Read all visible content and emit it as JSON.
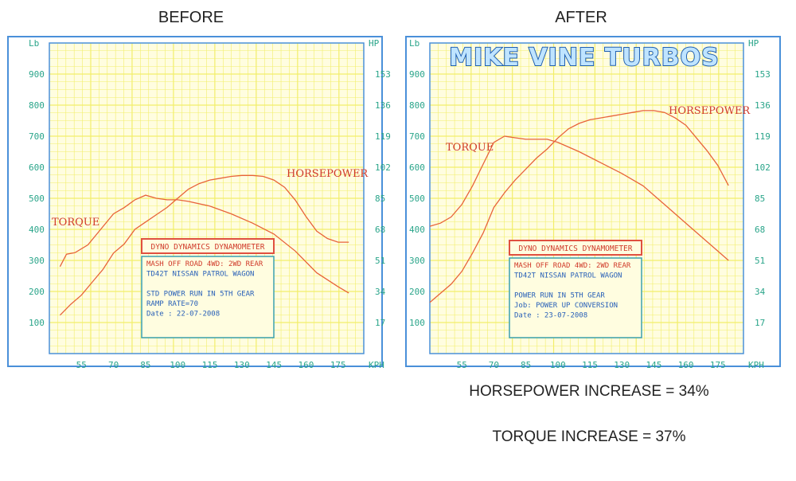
{
  "headings": {
    "before": "BEFORE",
    "after": "AFTER"
  },
  "results": {
    "hp": "HORSEPOWER INCREASE = 34%",
    "torque": "TORQUE INCREASE = 37%"
  },
  "brand": "MIKE VINE TURBOS",
  "colors": {
    "grid": "#f2ee6a",
    "frame": "#4a90d9",
    "curve": "#e8633a",
    "axis_text": "#2aa58a",
    "box_border": "#e05040",
    "box_text": "#2860b8",
    "box_red": "#d03a2a"
  },
  "chart_data": [
    {
      "type": "line",
      "x_ticks": [
        55,
        70,
        85,
        100,
        115,
        130,
        145,
        160,
        175
      ],
      "x_unit": "KPH",
      "xlim": [
        40,
        187
      ],
      "y_left_unit": "Lb",
      "y_left_ticks": [
        100,
        200,
        300,
        400,
        500,
        600,
        700,
        800,
        900
      ],
      "y_left_lim": [
        0,
        1000
      ],
      "y_right_unit": "HP",
      "y_right_ticks": [
        17,
        34,
        51,
        68,
        85,
        102,
        119,
        136,
        153
      ],
      "y_right_lim": [
        0,
        170
      ],
      "series": [
        {
          "name": "TORQUE",
          "axis": "left",
          "x": [
            45,
            48,
            52,
            58,
            64,
            70,
            75,
            80,
            85,
            90,
            95,
            100,
            105,
            115,
            125,
            135,
            145,
            155,
            165,
            175,
            180
          ],
          "y": [
            280,
            320,
            325,
            350,
            400,
            450,
            470,
            495,
            510,
            500,
            495,
            495,
            490,
            475,
            450,
            420,
            385,
            330,
            260,
            215,
            195
          ]
        },
        {
          "name": "HORSEPOWER",
          "axis": "right",
          "x": [
            45,
            50,
            55,
            60,
            65,
            70,
            75,
            80,
            85,
            90,
            95,
            100,
            105,
            110,
            115,
            120,
            125,
            130,
            135,
            140,
            145,
            150,
            155,
            160,
            165,
            170,
            175,
            180
          ],
          "y": [
            21,
            27,
            32,
            39,
            46,
            55,
            60,
            68,
            72,
            76,
            80,
            85,
            90,
            93,
            95,
            96,
            97,
            97.5,
            97.5,
            97,
            95,
            91,
            84,
            75,
            67,
            63,
            61,
            61
          ]
        }
      ],
      "info_box": {
        "header": "DYNO DYNAMICS DYNAMOMETER",
        "lines": [
          "MASH OFF ROAD 4WD: 2WD REAR",
          "TD42T NISSAN PATROL WAGON",
          "",
          "STD POWER RUN IN 5TH GEAR",
          "RAMP RATE=70",
          "Date      : 22-07-2008"
        ]
      }
    },
    {
      "type": "line",
      "x_ticks": [
        55,
        70,
        85,
        100,
        115,
        130,
        145,
        160,
        175
      ],
      "x_unit": "KPH",
      "xlim": [
        40,
        187
      ],
      "y_left_unit": "Lb",
      "y_left_ticks": [
        100,
        200,
        300,
        400,
        500,
        600,
        700,
        800,
        900
      ],
      "y_left_lim": [
        0,
        1000
      ],
      "y_right_unit": "HP",
      "y_right_ticks": [
        17,
        34,
        51,
        68,
        85,
        102,
        119,
        136,
        153
      ],
      "y_right_lim": [
        0,
        170
      ],
      "series": [
        {
          "name": "TORQUE",
          "axis": "left",
          "x": [
            40,
            45,
            50,
            55,
            60,
            65,
            70,
            75,
            80,
            85,
            90,
            95,
            100,
            105,
            110,
            120,
            130,
            140,
            150,
            160,
            170,
            180
          ],
          "y": [
            410,
            420,
            440,
            480,
            540,
            610,
            680,
            700,
            695,
            690,
            690,
            690,
            680,
            665,
            650,
            615,
            580,
            540,
            480,
            420,
            360,
            300
          ]
        },
        {
          "name": "HORSEPOWER",
          "axis": "right",
          "x": [
            40,
            45,
            50,
            55,
            60,
            65,
            70,
            75,
            80,
            85,
            90,
            95,
            100,
            105,
            110,
            115,
            120,
            125,
            130,
            135,
            140,
            145,
            150,
            155,
            160,
            165,
            170,
            175,
            180
          ],
          "y": [
            28,
            33,
            38,
            45,
            55,
            66,
            80,
            88,
            95,
            101,
            107,
            112,
            118,
            123,
            126,
            128,
            129,
            130,
            131,
            132,
            133,
            133,
            132,
            129,
            125,
            118,
            111,
            103,
            92
          ]
        }
      ],
      "info_box": {
        "header": "DYNO DYNAMICS DYNAMOMETER",
        "lines": [
          "MASH OFF ROAD 4WD: 2WD REAR",
          "TD42T NISSAN PATROL WAGON",
          "",
          "POWER RUN IN 5TH GEAR",
          "Job: POWER UP CONVERSION",
          "Date      : 23-07-2008"
        ]
      }
    }
  ]
}
